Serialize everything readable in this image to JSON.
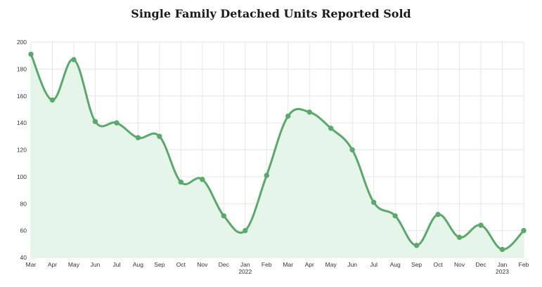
{
  "chart_data": {
    "type": "area",
    "title": "Single Family Detached Units Reported Sold",
    "xlabel": "",
    "ylabel": "",
    "ylim": [
      40,
      200
    ],
    "yticks": [
      40,
      60,
      80,
      100,
      120,
      140,
      160,
      180,
      200
    ],
    "grid": true,
    "legend": "none",
    "line_color": "#5aa86c",
    "fill_color": "#e6f5e9",
    "categories": [
      "Mar",
      "Apr",
      "May",
      "Jun",
      "Jul",
      "Aug",
      "Sep",
      "Oct",
      "Nov",
      "Dec",
      "Jan",
      "Feb",
      "Mar",
      "Apr",
      "May",
      "Jun",
      "Jul",
      "Aug",
      "Sep",
      "Oct",
      "Nov",
      "Dec",
      "Jan",
      "Feb"
    ],
    "sub_labels": [
      "",
      "",
      "",
      "",
      "",
      "",
      "",
      "",
      "",
      "",
      "2022",
      "",
      "",
      "",
      "",
      "",
      "",
      "",
      "",
      "",
      "",
      "",
      "2023",
      ""
    ],
    "values": [
      191,
      157,
      187,
      141,
      140,
      129,
      130,
      96,
      98,
      71,
      60,
      101,
      145,
      148,
      136,
      120,
      81,
      71,
      49,
      72,
      55,
      64,
      46,
      60
    ]
  }
}
